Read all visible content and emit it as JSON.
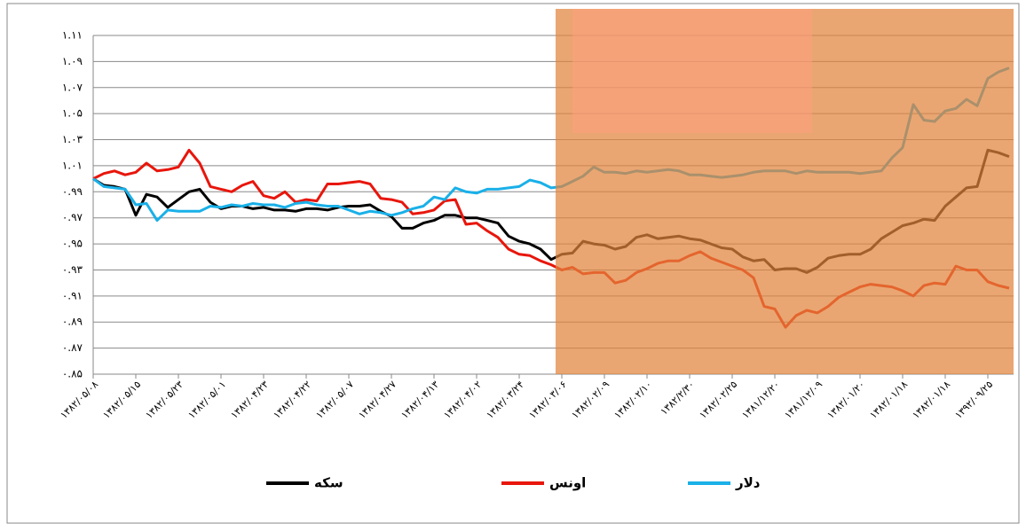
{
  "chart_data": {
    "type": "line",
    "categories": [
      "۱۳۸۲/۰۵/۰۸",
      null,
      null,
      null,
      "۱۳۸۲/۰۵/۱۵",
      null,
      null,
      null,
      "۱۳۸۲/۰۵/۲۳",
      null,
      null,
      null,
      "۱۳۸۲/۰۵/۰۱",
      null,
      null,
      null,
      "۱۳۸۲/۰۴/۲۳",
      null,
      null,
      null,
      "۱۳۸۲/۰۴/۲۲",
      null,
      null,
      null,
      "۱۳۸۲/۰۵/۰۷",
      null,
      null,
      null,
      "۱۳۸۲/۰۴/۲۷",
      null,
      null,
      null,
      "۱۳۸۲/۰۴/۱۳",
      null,
      null,
      null,
      "۱۳۸۲/۰۴/۰۲",
      null,
      null,
      null,
      "۱۳۸۲/۰۳/۲۴",
      null,
      null,
      null,
      "۱۳۸۲/۰۳/۰۶",
      null,
      null,
      null,
      "۱۳۸۲/۰۲/۰۹",
      null,
      null,
      null,
      "۱۳۸۲/۰۲/۱۰",
      null,
      null,
      null,
      "۱۳۸۲/۲/۳۰",
      null,
      null,
      null,
      "۱۳۸۲/۰۲/۲۵",
      null,
      null,
      null,
      "۱۳۸۱/۱۲/۲۰",
      null,
      null,
      null,
      "۱۳۸۱/۱۲/۰۹",
      null,
      null,
      null,
      "۱۳۸۲/۰۱/۲۰",
      null,
      null,
      null,
      "۱۳۸۲/۰۱/۱۸",
      null,
      null,
      null,
      "۱۳۸۲/۰۱/۱۸",
      null,
      null,
      null,
      "۱۳۹۲/۰۹/۲۵",
      null,
      null
    ],
    "series": [
      {
        "name": "سکه",
        "color": "#000000",
        "values": [
          1.0,
          0.995,
          0.994,
          0.992,
          0.972,
          0.988,
          0.986,
          0.978,
          0.984,
          0.99,
          0.992,
          0.982,
          0.977,
          0.979,
          0.979,
          0.977,
          0.978,
          0.976,
          0.976,
          0.975,
          0.977,
          0.977,
          0.976,
          0.978,
          0.979,
          0.979,
          0.98,
          0.975,
          0.971,
          0.962,
          0.962,
          0.966,
          0.968,
          0.972,
          0.972,
          0.97,
          0.97,
          0.968,
          0.966,
          0.956,
          0.952,
          0.95,
          0.946,
          0.938,
          0.942,
          0.943,
          0.952,
          0.95,
          0.949,
          0.946,
          0.948,
          0.955,
          0.957,
          0.954,
          0.955,
          0.956,
          0.954,
          0.953,
          0.95,
          0.947,
          0.946,
          0.94,
          0.937,
          0.938,
          0.93,
          0.931,
          0.931,
          0.928,
          0.932,
          0.939,
          0.941,
          0.942,
          0.942,
          0.946,
          0.954,
          0.959,
          0.964,
          0.966,
          0.969,
          0.968,
          0.979,
          0.986,
          0.993,
          0.994,
          1.022,
          1.02,
          1.017
        ]
      },
      {
        "name": "اونس",
        "color": "#e8160c",
        "values": [
          1.0,
          1.004,
          1.006,
          1.003,
          1.005,
          1.012,
          1.006,
          1.007,
          1.009,
          1.022,
          1.012,
          0.994,
          0.992,
          0.99,
          0.995,
          0.998,
          0.987,
          0.985,
          0.99,
          0.982,
          0.984,
          0.983,
          0.996,
          0.996,
          0.997,
          0.998,
          0.996,
          0.985,
          0.984,
          0.982,
          0.973,
          0.974,
          0.976,
          0.983,
          0.984,
          0.965,
          0.966,
          0.96,
          0.955,
          0.946,
          0.942,
          0.941,
          0.937,
          0.934,
          0.93,
          0.932,
          0.927,
          0.928,
          0.928,
          0.92,
          0.922,
          0.928,
          0.931,
          0.935,
          0.937,
          0.937,
          0.941,
          0.944,
          0.939,
          0.936,
          0.933,
          0.93,
          0.924,
          0.902,
          0.9,
          0.886,
          0.895,
          0.899,
          0.897,
          0.902,
          0.909,
          0.913,
          0.917,
          0.919,
          0.918,
          0.917,
          0.914,
          0.91,
          0.918,
          0.92,
          0.919,
          0.933,
          0.93,
          0.93,
          0.921,
          0.918,
          0.916
        ]
      },
      {
        "name": "دلار",
        "color": "#1ab0e8",
        "values": [
          1.0,
          0.994,
          0.993,
          0.992,
          0.98,
          0.981,
          0.968,
          0.976,
          0.975,
          0.975,
          0.975,
          0.979,
          0.978,
          0.98,
          0.979,
          0.981,
          0.98,
          0.98,
          0.978,
          0.981,
          0.982,
          0.98,
          0.979,
          0.979,
          0.976,
          0.973,
          0.975,
          0.974,
          0.972,
          0.974,
          0.977,
          0.979,
          0.986,
          0.984,
          0.993,
          0.99,
          0.989,
          0.992,
          0.992,
          0.993,
          0.994,
          0.999,
          0.997,
          0.993,
          0.994,
          0.998,
          1.002,
          1.009,
          1.005,
          1.005,
          1.004,
          1.006,
          1.005,
          1.006,
          1.007,
          1.006,
          1.003,
          1.003,
          1.002,
          1.001,
          1.002,
          1.003,
          1.005,
          1.006,
          1.006,
          1.006,
          1.004,
          1.006,
          1.005,
          1.005,
          1.005,
          1.005,
          1.004,
          1.005,
          1.006,
          1.016,
          1.024,
          1.057,
          1.045,
          1.044,
          1.052,
          1.054,
          1.061,
          1.056,
          1.077,
          1.082,
          1.085
        ]
      }
    ],
    "ylim": [
      0.85,
      1.11
    ],
    "yticks": [
      {
        "value": 0.85,
        "label": "۰.۸۵"
      },
      {
        "value": 0.87,
        "label": "۰.۸۷"
      },
      {
        "value": 0.89,
        "label": "۰.۸۹"
      },
      {
        "value": 0.91,
        "label": "۰.۹۱"
      },
      {
        "value": 0.93,
        "label": "۰.۹۳"
      },
      {
        "value": 0.95,
        "label": "۰.۹۵"
      },
      {
        "value": 0.97,
        "label": "۰.۹۷"
      },
      {
        "value": 0.99,
        "label": "۰.۹۹"
      },
      {
        "value": 1.01,
        "label": "۱.۰۱"
      },
      {
        "value": 1.03,
        "label": "۱.۰۳"
      },
      {
        "value": 1.05,
        "label": "۱.۰۵"
      },
      {
        "value": 1.07,
        "label": "۱.۰۷"
      },
      {
        "value": 1.09,
        "label": "۱.۰۹"
      },
      {
        "value": 1.11,
        "label": "۱.۱۱"
      }
    ],
    "grid": true,
    "legend": "bottom"
  }
}
